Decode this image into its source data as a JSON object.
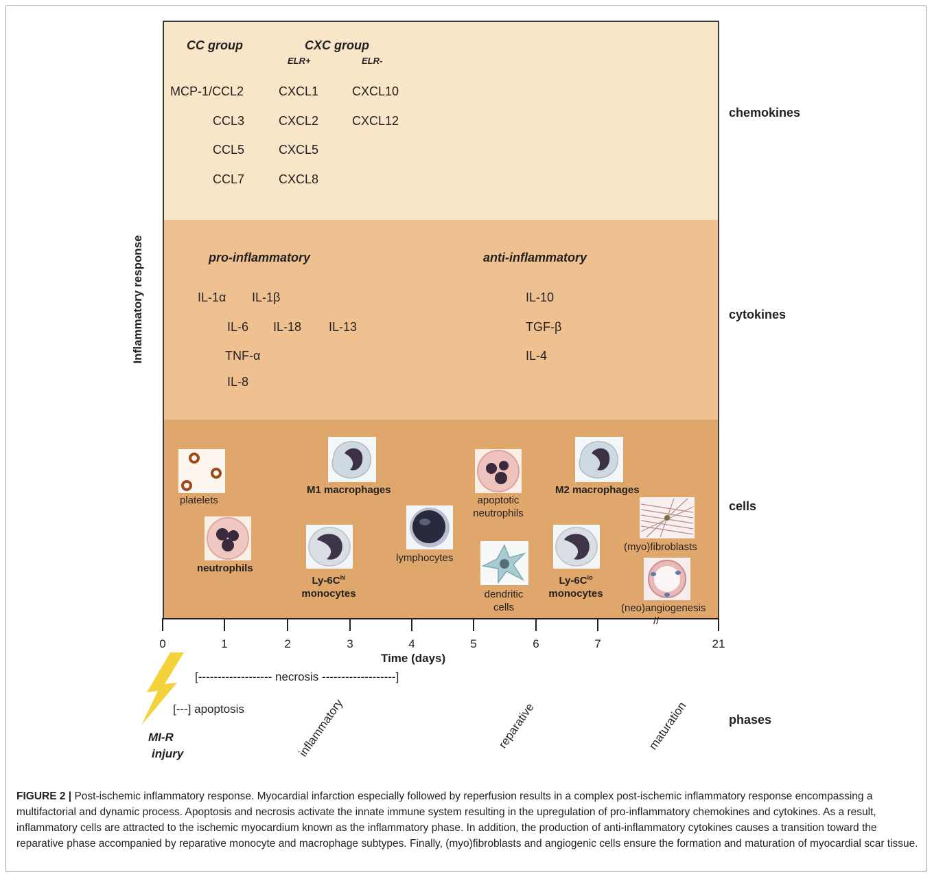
{
  "y_axis_title": "Inflammatory response",
  "x_axis": {
    "title": "Time (days)",
    "ticks": [
      "0",
      "1",
      "2",
      "3",
      "4",
      "5",
      "6",
      "7",
      "21"
    ],
    "break_mark": "//"
  },
  "rows": {
    "chemokines": {
      "label": "chemokines",
      "cc_header": "CC group",
      "cxc_header": "CXC group",
      "elr_plus": "ELR+",
      "elr_minus": "ELR-",
      "cc_items": [
        "MCP-1/CCL2",
        "CCL3",
        "CCL5",
        "CCL7"
      ],
      "elr_plus_items": [
        "CXCL1",
        "CXCL2",
        "CXCL5",
        "CXCL8"
      ],
      "elr_minus_items": [
        "CXCL10",
        "CXCL12"
      ]
    },
    "cytokines": {
      "label": "cytokines",
      "pro_header": "pro-inflammatory",
      "anti_header": "anti-inflammatory",
      "pro_items": [
        "IL-1α",
        "IL-1β",
        "IL-6",
        "IL-18",
        "IL-13",
        "TNF-α",
        "IL-8"
      ],
      "anti_items": [
        "IL-10",
        "TGF-β",
        "IL-4"
      ]
    },
    "cells": {
      "label": "cells",
      "items": {
        "platelets": "platelets",
        "neutrophils": "neutrophils",
        "m1": "M1 macrophages",
        "ly6chi_a": "Ly-6C",
        "ly6chi_sup": "hi",
        "ly6chi_b": "monocytes",
        "lymphocytes": "lymphocytes",
        "apoptotic_a": "apoptotic",
        "apoptotic_b": "neutrophils",
        "dendritic_a": "dendritic",
        "dendritic_b": "cells",
        "m2": "M2 macrophages",
        "ly6clo_a": "Ly-6C",
        "ly6clo_sup": "lo",
        "ly6clo_b": "monocytes",
        "fibroblasts": "(myo)fibroblasts",
        "angio": "(neo)angiogenesis"
      }
    }
  },
  "timeline": {
    "necrosis": "[------------------- necrosis -------------------]",
    "apoptosis": "[---] apoptosis",
    "injury_a": "MI-R",
    "injury_b": "injury",
    "phases_label": "phases",
    "phases": [
      "inflammatory",
      "reparative",
      "maturation"
    ]
  },
  "caption": {
    "label": "FIGURE 2 |",
    "text": " Post-ischemic inflammatory response. Myocardial infarction especially followed by reperfusion results in a complex post-ischemic inflammatory response encompassing a multifactorial and dynamic process. Apoptosis and necrosis activate the innate immune system resulting in the upregulation of pro-inflammatory chemokines and cytokines. As a result, inflammatory cells are attracted to the ischemic myocardium known as the inflammatory phase. In addition, the production of anti-inflammatory cytokines causes a transition toward the reparative phase accompanied by reparative monocyte and macrophage subtypes. Finally, (myo)fibroblasts and angiogenic cells ensure the formation and maturation of myocardial scar tissue."
  }
}
